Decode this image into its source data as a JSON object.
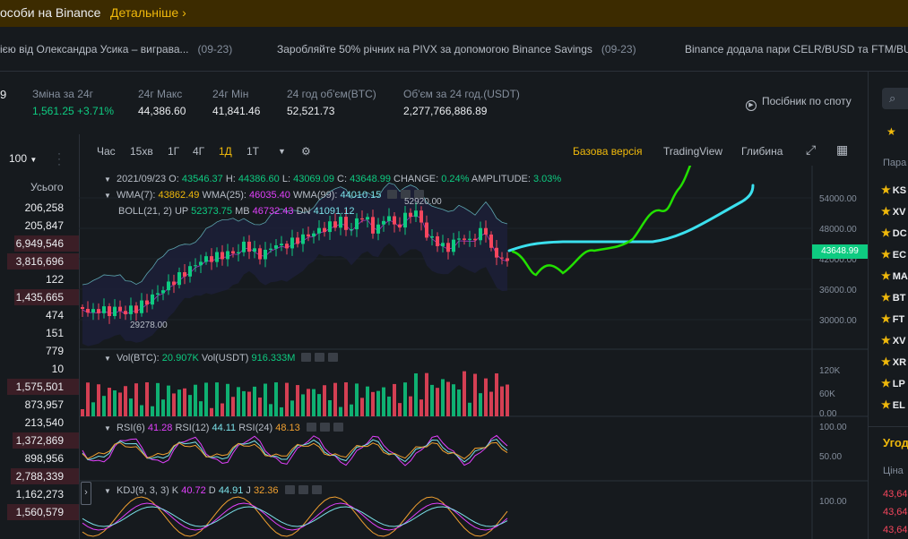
{
  "banner": {
    "text": "особи на Binance",
    "link": "Детальніше",
    "link_icon": "chevron-right-icon"
  },
  "news": [
    {
      "text": "ією від Олександра Усика – виграва...",
      "date": "(09-23)"
    },
    {
      "text": "Заробляйте 50% річних на PIVX за допомогою Binance Savings",
      "date": "(09-23)"
    },
    {
      "text": "Binance додала пари CELR/BUSD та FTM/BUS",
      "date": ""
    }
  ],
  "stats": {
    "pair_fragment": "9",
    "change_label": "Зміна за 24г",
    "change_value": "1,561.25 +3.71%",
    "high_label": "24г Макс",
    "high_value": "44,386.60",
    "low_label": "24г Мін",
    "low_value": "41,841.46",
    "vol_btc_label": "24 год об'єм(BTC)",
    "vol_btc_value": "52,521.73",
    "vol_usdt_label": "Об'єм за 24 год.(USDT)",
    "vol_usdt_value": "2,277,766,886.89",
    "guide_label": "Посібник по споту"
  },
  "orderbook": {
    "rows_select": "100",
    "total_label": "Усього",
    "totals": [
      "206,258",
      "205,847",
      "6,949,546",
      "3,816,696",
      "122",
      "1,435,665",
      "474",
      "151",
      "779",
      "10",
      "1,575,501",
      "873,957",
      "213,540",
      "1,372,869",
      "898,956",
      "2,788,339",
      "1,162,273",
      "1,560,579"
    ]
  },
  "toolbar": {
    "timeframes": [
      "Час",
      "15хв",
      "1Г",
      "4Г",
      "1Д",
      "1Т"
    ],
    "active_timeframe": "1Д",
    "view_basic": "Базова версія",
    "view_tradingview": "TradingView",
    "view_depth": "Глибина"
  },
  "chart_overlay": {
    "date": "2021/09/23",
    "open_label": "O:",
    "open": "43546.37",
    "high_label": "H:",
    "high": "44386.60",
    "low_label": "L:",
    "low": "43069.09",
    "close_label": "C:",
    "close": "43648.99",
    "change_label": "CHANGE:",
    "change": "0.24%",
    "amp_label": "AMPLITUDE:",
    "amp": "3.03%",
    "wma7_label": "WMA(7):",
    "wma7": "43862.49",
    "wma25_label": "WMA(25):",
    "wma25": "46035.40",
    "wma99_label": "WMA(99):",
    "wma99": "44010.15",
    "boll_label": "BOLL(21, 2)",
    "up_label": "UP",
    "up": "52373.75",
    "mb_label": "MB",
    "mb": "46732.43",
    "dn_label": "DN",
    "dn": "41091.12",
    "max_marker": "52920.00",
    "min_marker": "29278.00",
    "vol_label": "Vol(BTC):",
    "vol_btc": "20.907K",
    "vol_usdt_label": "Vol(USDT)",
    "vol_usdt": "916.333M",
    "rsi6_label": "RSI(6)",
    "rsi6": "41.28",
    "rsi12_label": "RSI(12)",
    "rsi12": "44.11",
    "rsi24_label": "RSI(24)",
    "rsi24": "48.13",
    "kdj_label": "KDJ(9, 3, 3)",
    "k_label": "K",
    "k": "40.72",
    "d_label": "D",
    "d": "44.91",
    "j_label": "J",
    "j": "32.36",
    "current_price": "43648.99"
  },
  "axis": {
    "price_ticks": [
      "54000.00",
      "48000.00",
      "42000.00",
      "36000.00",
      "30000.00"
    ],
    "vol_ticks": [
      "120K",
      "60K",
      "0.00"
    ],
    "rsi_ticks": [
      "100.00",
      "50.00"
    ],
    "kdj_ticks": [
      "100.00"
    ]
  },
  "right_panel": {
    "pairs_label": "Пара",
    "favorites": [
      "KS",
      "XV",
      "DC",
      "EC",
      "MA",
      "BT",
      "FT",
      "XV",
      "XR",
      "LP",
      "EL"
    ],
    "trades_label": "Угод",
    "price_label": "Ціна",
    "prices": [
      "43,64",
      "43,64",
      "43,64"
    ]
  },
  "colors": {
    "up": "#0ecb81",
    "down": "#f6465d",
    "accent": "#f0b90b",
    "drawing_green": "#22e000",
    "drawing_cyan": "#3be0ee"
  }
}
